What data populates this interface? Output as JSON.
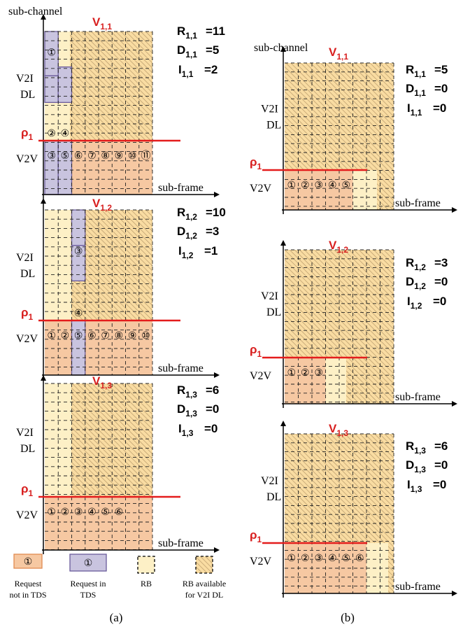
{
  "colors": {
    "rb_fill": "#fdf0c6",
    "v2v_fill": "#f6c8a2",
    "tds_fill": "#c9c4df",
    "accent_red": "#e41c1c",
    "circle_red": "#c8171c",
    "hatch": "#b89a6a"
  },
  "text": {
    "sub_channel": "sub-channel",
    "sub_frame": "sub-frame",
    "v2i": "V2I",
    "dl": "DL",
    "v2v": "V2V",
    "rho_base": "ρ",
    "rho_sub": "1",
    "V": "V",
    "R": "R",
    "D": "D",
    "I": "I",
    "eq": "=",
    "caption_a": "(a)",
    "caption_b": "(b)"
  },
  "legend": [
    {
      "icon": "request-not-in-tds",
      "label1": "Request",
      "label2": "not in TDS",
      "glyph": "①"
    },
    {
      "icon": "request-in-tds",
      "label1": "Request in",
      "label2": "TDS",
      "glyph": "①"
    },
    {
      "icon": "rb",
      "label1": "RB",
      "label2": ""
    },
    {
      "icon": "rb-available",
      "label1": "RB available",
      "label2": "for V2I DL"
    }
  ],
  "panels": [
    {
      "col": "a",
      "sub": "1,1",
      "R": "11",
      "D": "5",
      "I": "2",
      "v2v_labels": [
        "③",
        "⑤",
        "⑥",
        "⑦",
        "⑧",
        "⑨",
        "⑩",
        "⑪"
      ],
      "tds_top": [
        {
          "col": 0,
          "rows": [
            0,
            5
          ],
          "glyph": "①",
          "grow": 0.7
        },
        {
          "col": 0,
          "rows": [
            5,
            8
          ],
          "glyph": "②",
          "grow": 5.9
        },
        {
          "col": 1,
          "rows": [
            4,
            8
          ],
          "glyph": "④",
          "grow": 5.9
        }
      ],
      "tds_v2v_cols": [
        0,
        1
      ]
    },
    {
      "col": "a",
      "sub": "1,2",
      "R": "10",
      "D": "3",
      "I": "1",
      "v2v_labels": [
        "①",
        "②",
        "⑤",
        "⑥",
        "⑦",
        "⑧",
        "⑨",
        "⑩"
      ],
      "tds_top": [
        {
          "col": 2,
          "rows": [
            0,
            4
          ],
          "glyph": "③",
          "grow": 1.7
        },
        {
          "col": 2,
          "rows": [
            4,
            8
          ],
          "glyph": "④",
          "grow": 5.4
        }
      ],
      "tds_v2v_cols": [
        2
      ]
    },
    {
      "col": "a",
      "sub": "1,3",
      "R": "6",
      "D": "0",
      "I": "0",
      "v2v_labels": [
        "①",
        "②",
        "③",
        "④",
        "⑤",
        "⑥"
      ],
      "tds_top": [],
      "tds_v2v_cols": []
    },
    {
      "col": "b",
      "sub": "1,1",
      "R": "5",
      "D": "0",
      "I": "0",
      "v2v_labels": [
        "①",
        "②",
        "③",
        "④",
        "⑤"
      ]
    },
    {
      "col": "b",
      "sub": "1,2",
      "R": "3",
      "D": "0",
      "I": "0",
      "v2v_labels": [
        "①",
        "②",
        "③"
      ]
    },
    {
      "col": "b",
      "sub": "1,3",
      "R": "6",
      "D": "0",
      "I": "0",
      "v2v_labels": [
        "①",
        "②",
        "③",
        "④",
        "⑤",
        "⑥"
      ]
    }
  ]
}
